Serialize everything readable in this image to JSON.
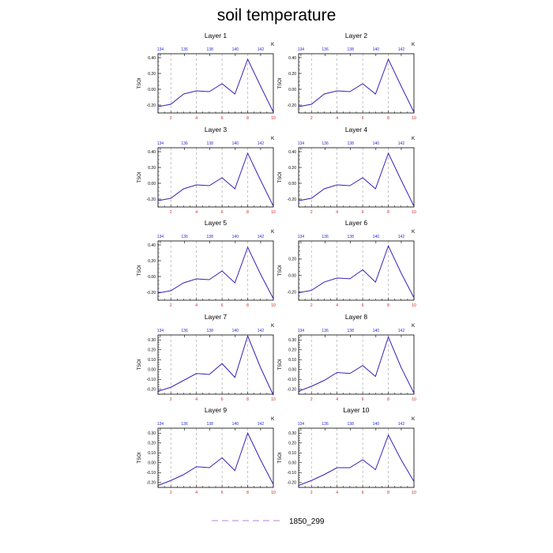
{
  "title": "soil temperature",
  "legend": {
    "label": "1850_299",
    "placement": "bottom-center",
    "line_color": "#c79be3",
    "line_style": "dashed"
  },
  "colors": {
    "series_line": "#3a1fb6",
    "top_axis_labels": "#1f1fcc",
    "bottom_axis_labels": "#cc1f1f",
    "vertical_gridlines": "#9a9a9a"
  },
  "chart_data": [
    {
      "type": "line",
      "title": "Layer 1",
      "ylabel": "TSOI",
      "top_axis_unit": "K",
      "x": [
        1,
        2,
        3,
        4,
        5,
        6,
        7,
        8,
        9,
        10
      ],
      "values": [
        -0.22,
        -0.19,
        -0.06,
        -0.02,
        -0.03,
        0.07,
        -0.06,
        0.38,
        0.04,
        -0.29
      ],
      "xlim": [
        1,
        10
      ],
      "ylim": [
        -0.3,
        0.45
      ],
      "xticks": [
        2,
        4,
        6,
        8,
        10
      ],
      "yticks": [
        -0.2,
        0.0,
        0.2,
        0.4
      ],
      "ytick_labels": [
        "-0.20",
        "0.00",
        "0.20",
        "0.40"
      ],
      "top_ticks": [
        "134",
        "136",
        "138",
        "140",
        "142"
      ],
      "grid": "vertical dashed at 2,4,6,8"
    },
    {
      "type": "line",
      "title": "Layer 2",
      "ylabel": "TSOI",
      "top_axis_unit": "K",
      "x": [
        1,
        2,
        3,
        4,
        5,
        6,
        7,
        8,
        9,
        10
      ],
      "values": [
        -0.22,
        -0.19,
        -0.06,
        -0.02,
        -0.03,
        0.07,
        -0.06,
        0.38,
        0.04,
        -0.29
      ],
      "xlim": [
        1,
        10
      ],
      "ylim": [
        -0.3,
        0.45
      ],
      "xticks": [
        2,
        4,
        6,
        8,
        10
      ],
      "yticks": [
        -0.2,
        0.0,
        0.2,
        0.4
      ],
      "ytick_labels": [
        "-0.20",
        "0.00",
        "0.20",
        "0.40"
      ],
      "top_ticks": [
        "134",
        "136",
        "138",
        "140",
        "142"
      ],
      "grid": "vertical dashed at 2,4,6,8"
    },
    {
      "type": "line",
      "title": "Layer 3",
      "ylabel": "TSOI",
      "top_axis_unit": "K",
      "x": [
        1,
        2,
        3,
        4,
        5,
        6,
        7,
        8,
        9,
        10
      ],
      "values": [
        -0.22,
        -0.19,
        -0.07,
        -0.02,
        -0.03,
        0.07,
        -0.07,
        0.38,
        0.04,
        -0.29
      ],
      "xlim": [
        1,
        10
      ],
      "ylim": [
        -0.3,
        0.45
      ],
      "xticks": [
        2,
        4,
        6,
        8,
        10
      ],
      "yticks": [
        -0.2,
        0.0,
        0.2,
        0.4
      ],
      "ytick_labels": [
        "-0.20",
        "0.00",
        "0.20",
        "0.40"
      ],
      "top_ticks": [
        "134",
        "136",
        "138",
        "140",
        "142"
      ],
      "grid": "vertical dashed at 2,4,6,8"
    },
    {
      "type": "line",
      "title": "Layer 4",
      "ylabel": "TSOI",
      "top_axis_unit": "K",
      "x": [
        1,
        2,
        3,
        4,
        5,
        6,
        7,
        8,
        9,
        10
      ],
      "values": [
        -0.22,
        -0.19,
        -0.07,
        -0.02,
        -0.03,
        0.07,
        -0.07,
        0.38,
        0.04,
        -0.29
      ],
      "xlim": [
        1,
        10
      ],
      "ylim": [
        -0.3,
        0.45
      ],
      "xticks": [
        2,
        4,
        6,
        8,
        10
      ],
      "yticks": [
        -0.2,
        0.0,
        0.2,
        0.4
      ],
      "ytick_labels": [
        "-0.20",
        "0.00",
        "0.20",
        "0.40"
      ],
      "top_ticks": [
        "134",
        "136",
        "138",
        "140",
        "142"
      ],
      "grid": "vertical dashed at 2,4,6,8"
    },
    {
      "type": "line",
      "title": "Layer 5",
      "ylabel": "TSOI",
      "top_axis_unit": "K",
      "x": [
        1,
        2,
        3,
        4,
        5,
        6,
        7,
        8,
        9,
        10
      ],
      "values": [
        -0.21,
        -0.18,
        -0.08,
        -0.03,
        -0.04,
        0.07,
        -0.08,
        0.37,
        0.03,
        -0.28
      ],
      "xlim": [
        1,
        10
      ],
      "ylim": [
        -0.3,
        0.45
      ],
      "xticks": [
        2,
        4,
        6,
        8,
        10
      ],
      "yticks": [
        -0.2,
        0.0,
        0.2,
        0.4
      ],
      "ytick_labels": [
        "-0.20",
        "0.00",
        "0.20",
        "0.40"
      ],
      "top_ticks": [
        "134",
        "136",
        "138",
        "140",
        "142"
      ],
      "grid": "vertical dashed at 2,4,6,8"
    },
    {
      "type": "line",
      "title": "Layer 6",
      "ylabel": "TSOI",
      "top_axis_unit": "K",
      "x": [
        1,
        2,
        3,
        4,
        5,
        6,
        7,
        8,
        9,
        10
      ],
      "values": [
        -0.21,
        -0.18,
        -0.08,
        -0.03,
        -0.04,
        0.07,
        -0.08,
        0.36,
        0.03,
        -0.27
      ],
      "xlim": [
        1,
        10
      ],
      "ylim": [
        -0.3,
        0.42
      ],
      "xticks": [
        2,
        4,
        6,
        8,
        10
      ],
      "yticks": [
        -0.2,
        0.0,
        0.2
      ],
      "ytick_labels": [
        "-0.20",
        "0.00",
        "0.20"
      ],
      "top_ticks": [
        "134",
        "136",
        "138",
        "140",
        "142"
      ],
      "grid": "vertical dashed at 2,4,6,8"
    },
    {
      "type": "line",
      "title": "Layer 7",
      "ylabel": "TSOI",
      "top_axis_unit": "K",
      "x": [
        1,
        2,
        3,
        4,
        5,
        6,
        7,
        8,
        9,
        10
      ],
      "values": [
        -0.22,
        -0.18,
        -0.11,
        -0.04,
        -0.05,
        0.06,
        -0.08,
        0.34,
        0.02,
        -0.26
      ],
      "xlim": [
        1,
        10
      ],
      "ylim": [
        -0.25,
        0.35
      ],
      "xticks": [
        2,
        4,
        6,
        8,
        10
      ],
      "yticks": [
        -0.2,
        -0.1,
        0.0,
        0.1,
        0.2,
        0.3
      ],
      "ytick_labels": [
        "-0.20",
        "-0.10",
        "0.00",
        "0.10",
        "0.20",
        "0.30"
      ],
      "top_ticks": [
        "134",
        "136",
        "138",
        "140",
        "142"
      ],
      "grid": "vertical dashed at 2,4,6,8"
    },
    {
      "type": "line",
      "title": "Layer 8",
      "ylabel": "TSOI",
      "top_axis_unit": "K",
      "x": [
        1,
        2,
        3,
        4,
        5,
        6,
        7,
        8,
        9,
        10
      ],
      "values": [
        -0.22,
        -0.17,
        -0.11,
        -0.03,
        -0.04,
        0.04,
        -0.07,
        0.33,
        0.02,
        -0.24
      ],
      "xlim": [
        1,
        10
      ],
      "ylim": [
        -0.25,
        0.35
      ],
      "xticks": [
        2,
        4,
        6,
        8,
        10
      ],
      "yticks": [
        -0.2,
        -0.1,
        0.0,
        0.1,
        0.2,
        0.3
      ],
      "ytick_labels": [
        "-0.20",
        "-0.10",
        "0.00",
        "0.10",
        "0.20",
        "0.30"
      ],
      "top_ticks": [
        "134",
        "136",
        "138",
        "140",
        "142"
      ],
      "grid": "vertical dashed at 2,4,6,8"
    },
    {
      "type": "line",
      "title": "Layer 9",
      "ylabel": "TSOI",
      "top_axis_unit": "K",
      "x": [
        1,
        2,
        3,
        4,
        5,
        6,
        7,
        8,
        9,
        10
      ],
      "values": [
        -0.23,
        -0.18,
        -0.12,
        -0.04,
        -0.05,
        0.05,
        -0.08,
        0.3,
        0.03,
        -0.22
      ],
      "xlim": [
        1,
        10
      ],
      "ylim": [
        -0.25,
        0.35
      ],
      "xticks": [
        2,
        4,
        6,
        8,
        10
      ],
      "yticks": [
        -0.2,
        -0.1,
        0.0,
        0.1,
        0.2,
        0.3
      ],
      "ytick_labels": [
        "-0.20",
        "-0.10",
        "0.00",
        "0.10",
        "0.20",
        "0.30"
      ],
      "top_ticks": [
        "134",
        "136",
        "138",
        "140",
        "142"
      ],
      "grid": "vertical dashed at 2,4,6,8"
    },
    {
      "type": "line",
      "title": "Layer 10",
      "ylabel": "TSOI",
      "top_axis_unit": "K",
      "x": [
        1,
        2,
        3,
        4,
        5,
        6,
        7,
        8,
        9,
        10
      ],
      "values": [
        -0.23,
        -0.18,
        -0.12,
        -0.05,
        -0.05,
        0.03,
        -0.07,
        0.28,
        0.03,
        -0.19
      ],
      "xlim": [
        1,
        10
      ],
      "ylim": [
        -0.25,
        0.35
      ],
      "xticks": [
        2,
        4,
        6,
        8,
        10
      ],
      "yticks": [
        -0.2,
        -0.1,
        0.0,
        0.1,
        0.2,
        0.3
      ],
      "ytick_labels": [
        "-0.20",
        "-0.10",
        "0.00",
        "0.10",
        "0.20",
        "0.30"
      ],
      "top_ticks": [
        "134",
        "136",
        "138",
        "140",
        "142"
      ],
      "grid": "vertical dashed at 2,4,6,8"
    }
  ]
}
